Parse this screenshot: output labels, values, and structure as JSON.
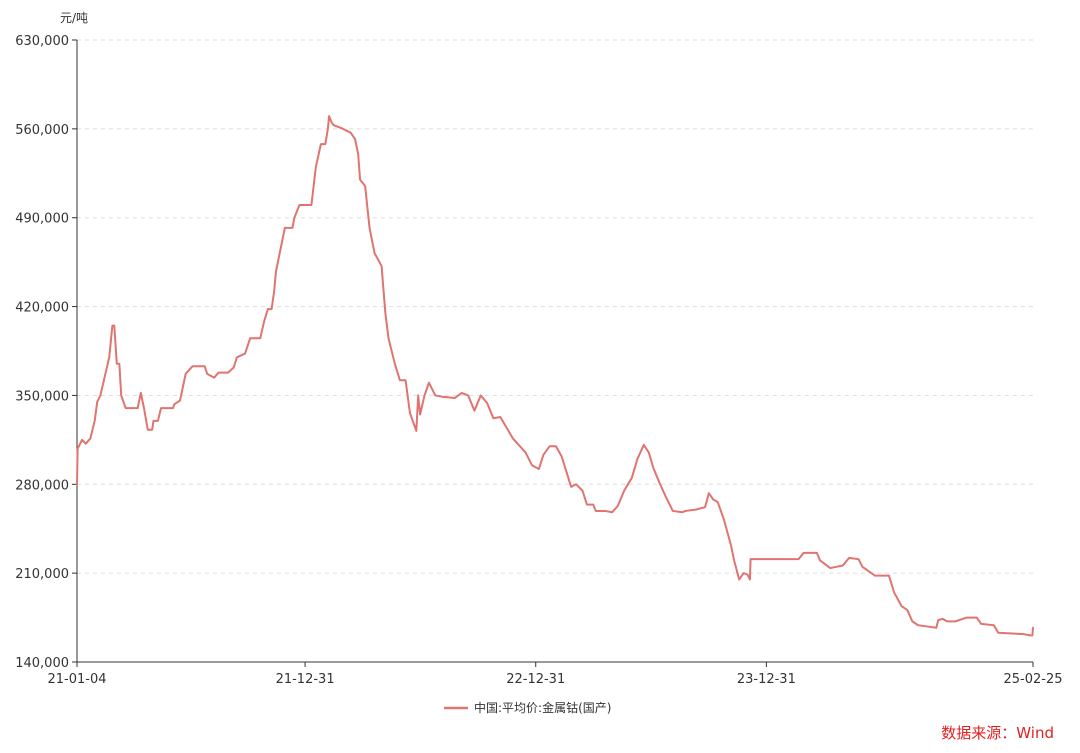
{
  "chart_data": {
    "type": "line",
    "title": "",
    "ylabel": "元/吨",
    "xlabel": "",
    "ylim": [
      140000,
      630000
    ],
    "yticks": [
      {
        "value": 140000,
        "label": "140,000"
      },
      {
        "value": 210000,
        "label": "210,000"
      },
      {
        "value": 280000,
        "label": "280,000"
      },
      {
        "value": 350000,
        "label": "350,000"
      },
      {
        "value": 420000,
        "label": "420,000"
      },
      {
        "value": 490000,
        "label": "490,000"
      },
      {
        "value": 560000,
        "label": "560,000"
      },
      {
        "value": 630000,
        "label": "630,000"
      }
    ],
    "xrange": [
      "2021-01-04",
      "2025-02-25"
    ],
    "xticks": [
      {
        "date": "2021-01-04",
        "label": "21-01-04"
      },
      {
        "date": "2021-12-31",
        "label": "21-12-31"
      },
      {
        "date": "2022-12-31",
        "label": "22-12-31"
      },
      {
        "date": "2023-12-31",
        "label": "23-12-31"
      },
      {
        "date": "2025-02-25",
        "label": "25-02-25"
      }
    ],
    "grid": "horizontal-dashed",
    "legend_position": "bottom-center",
    "series": [
      {
        "name": "中国:平均价:金属钴(国产)",
        "color": "#e07470",
        "points": [
          [
            "2021-01-04",
            280000
          ],
          [
            "2021-01-05",
            308000
          ],
          [
            "2021-01-12",
            315000
          ],
          [
            "2021-01-18",
            312000
          ],
          [
            "2021-01-25",
            316000
          ],
          [
            "2021-02-01",
            330000
          ],
          [
            "2021-02-05",
            345000
          ],
          [
            "2021-02-10",
            350000
          ],
          [
            "2021-02-24",
            380000
          ],
          [
            "2021-03-01",
            405000
          ],
          [
            "2021-03-04",
            405000
          ],
          [
            "2021-03-08",
            375000
          ],
          [
            "2021-03-12",
            375000
          ],
          [
            "2021-03-15",
            350000
          ],
          [
            "2021-03-22",
            340000
          ],
          [
            "2021-04-10",
            340000
          ],
          [
            "2021-04-15",
            352000
          ],
          [
            "2021-04-20",
            340000
          ],
          [
            "2021-04-26",
            323000
          ],
          [
            "2021-05-03",
            323000
          ],
          [
            "2021-05-05",
            330000
          ],
          [
            "2021-05-12",
            330000
          ],
          [
            "2021-05-17",
            340000
          ],
          [
            "2021-06-05",
            340000
          ],
          [
            "2021-06-07",
            343000
          ],
          [
            "2021-06-16",
            346000
          ],
          [
            "2021-06-25",
            367000
          ],
          [
            "2021-07-06",
            373000
          ],
          [
            "2021-07-25",
            373000
          ],
          [
            "2021-07-29",
            367000
          ],
          [
            "2021-08-09",
            364000
          ],
          [
            "2021-08-16",
            368000
          ],
          [
            "2021-08-31",
            368000
          ],
          [
            "2021-09-09",
            372000
          ],
          [
            "2021-09-14",
            380000
          ],
          [
            "2021-09-27",
            383000
          ],
          [
            "2021-10-05",
            395000
          ],
          [
            "2021-10-21",
            395000
          ],
          [
            "2021-10-27",
            408000
          ],
          [
            "2021-11-02",
            418000
          ],
          [
            "2021-11-08",
            418000
          ],
          [
            "2021-11-12",
            432000
          ],
          [
            "2021-11-15",
            448000
          ],
          [
            "2021-11-29",
            482000
          ],
          [
            "2021-12-11",
            482000
          ],
          [
            "2021-12-14",
            490000
          ],
          [
            "2021-12-22",
            500000
          ],
          [
            "2022-01-10",
            500000
          ],
          [
            "2022-01-17",
            530000
          ],
          [
            "2022-01-25",
            548000
          ],
          [
            "2022-02-01",
            548000
          ],
          [
            "2022-02-05",
            560000
          ],
          [
            "2022-02-07",
            570000
          ],
          [
            "2022-02-11",
            565000
          ],
          [
            "2022-02-14",
            563000
          ],
          [
            "2022-03-01",
            560000
          ],
          [
            "2022-03-13",
            557000
          ],
          [
            "2022-03-20",
            552000
          ],
          [
            "2022-03-25",
            540000
          ],
          [
            "2022-03-28",
            520000
          ],
          [
            "2022-04-05",
            515000
          ],
          [
            "2022-04-12",
            482000
          ],
          [
            "2022-04-20",
            462000
          ],
          [
            "2022-05-01",
            452000
          ],
          [
            "2022-05-07",
            415000
          ],
          [
            "2022-05-12",
            395000
          ],
          [
            "2022-05-22",
            375000
          ],
          [
            "2022-05-30",
            362000
          ],
          [
            "2022-06-08",
            362000
          ],
          [
            "2022-06-15",
            336000
          ],
          [
            "2022-06-25",
            322000
          ],
          [
            "2022-06-28",
            350000
          ],
          [
            "2022-07-01",
            335000
          ],
          [
            "2022-07-08",
            350000
          ],
          [
            "2022-07-15",
            360000
          ],
          [
            "2022-07-25",
            350000
          ],
          [
            "2022-08-05",
            349000
          ],
          [
            "2022-08-25",
            348000
          ],
          [
            "2022-09-05",
            352000
          ],
          [
            "2022-09-15",
            350000
          ],
          [
            "2022-09-25",
            338000
          ],
          [
            "2022-10-05",
            350000
          ],
          [
            "2022-10-15",
            344000
          ],
          [
            "2022-10-25",
            332000
          ],
          [
            "2022-11-05",
            333000
          ],
          [
            "2022-11-25",
            316000
          ],
          [
            "2022-12-15",
            305000
          ],
          [
            "2022-12-25",
            295000
          ],
          [
            "2023-01-05",
            292000
          ],
          [
            "2023-01-12",
            303000
          ],
          [
            "2023-01-22",
            310000
          ],
          [
            "2023-02-01",
            310000
          ],
          [
            "2023-02-10",
            302000
          ],
          [
            "2023-02-25",
            278000
          ],
          [
            "2023-03-05",
            280000
          ],
          [
            "2023-03-15",
            275000
          ],
          [
            "2023-03-22",
            264000
          ],
          [
            "2023-04-01",
            264000
          ],
          [
            "2023-04-05",
            259000
          ],
          [
            "2023-04-20",
            259000
          ],
          [
            "2023-05-01",
            258000
          ],
          [
            "2023-05-10",
            263000
          ],
          [
            "2023-05-20",
            275000
          ],
          [
            "2023-06-01",
            285000
          ],
          [
            "2023-06-10",
            300000
          ],
          [
            "2023-06-20",
            311000
          ],
          [
            "2023-06-28",
            305000
          ],
          [
            "2023-07-05",
            293000
          ],
          [
            "2023-07-15",
            281000
          ],
          [
            "2023-07-25",
            270000
          ],
          [
            "2023-08-05",
            259000
          ],
          [
            "2023-08-20",
            258000
          ],
          [
            "2023-08-25",
            259000
          ],
          [
            "2023-09-10",
            260000
          ],
          [
            "2023-09-25",
            262000
          ],
          [
            "2023-10-01",
            273000
          ],
          [
            "2023-10-08",
            268000
          ],
          [
            "2023-10-15",
            266000
          ],
          [
            "2023-10-25",
            252000
          ],
          [
            "2023-11-05",
            232000
          ],
          [
            "2023-11-10",
            220000
          ],
          [
            "2023-11-18",
            205000
          ],
          [
            "2023-11-25",
            210000
          ],
          [
            "2023-12-01",
            209000
          ],
          [
            "2023-12-05",
            205000
          ],
          [
            "2023-12-06",
            221000
          ],
          [
            "2024-02-20",
            221000
          ],
          [
            "2024-02-28",
            226000
          ],
          [
            "2024-03-20",
            226000
          ],
          [
            "2024-03-25",
            220000
          ],
          [
            "2024-04-10",
            214000
          ],
          [
            "2024-04-30",
            216000
          ],
          [
            "2024-05-10",
            222000
          ],
          [
            "2024-05-25",
            221000
          ],
          [
            "2024-05-31",
            215000
          ],
          [
            "2024-06-20",
            208000
          ],
          [
            "2024-07-12",
            208000
          ],
          [
            "2024-07-20",
            195000
          ],
          [
            "2024-08-01",
            184000
          ],
          [
            "2024-08-10",
            181000
          ],
          [
            "2024-08-18",
            172000
          ],
          [
            "2024-08-27",
            169000
          ],
          [
            "2024-09-25",
            167000
          ],
          [
            "2024-09-28",
            173000
          ],
          [
            "2024-10-05",
            174000
          ],
          [
            "2024-10-12",
            172000
          ],
          [
            "2024-10-25",
            172000
          ],
          [
            "2024-11-12",
            175000
          ],
          [
            "2024-11-28",
            175000
          ],
          [
            "2024-12-05",
            170000
          ],
          [
            "2024-12-25",
            169000
          ],
          [
            "2025-01-01",
            163000
          ],
          [
            "2025-02-10",
            162000
          ],
          [
            "2025-02-20",
            161000
          ],
          [
            "2025-02-24",
            161000
          ],
          [
            "2025-02-25",
            167000
          ]
        ]
      }
    ]
  },
  "source_label": "数据来源：Wind",
  "source_color": "#e02020"
}
